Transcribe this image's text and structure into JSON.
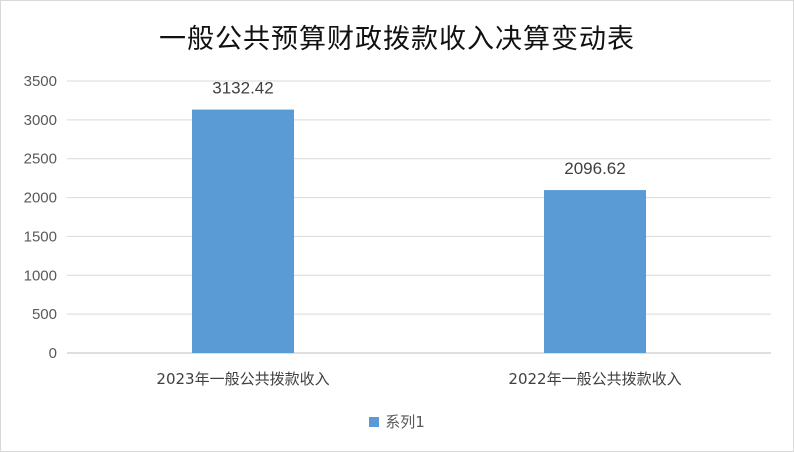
{
  "chart_data": {
    "type": "bar",
    "title": "一般公共预算财政拨款收入决算变动表",
    "categories": [
      "2023年一般公共拨款收入",
      "2022年一般公共拨款收入"
    ],
    "series": [
      {
        "name": "系列1",
        "values": [
          3132.42,
          2096.62
        ],
        "data_labels": [
          "3132.42",
          "2096.62"
        ],
        "color": "#5b9bd5"
      }
    ],
    "ylim": [
      0,
      3500
    ],
    "yticks": [
      0,
      500,
      1000,
      1500,
      2000,
      2500,
      3000,
      3500
    ],
    "grid": true,
    "legend_position": "bottom"
  }
}
